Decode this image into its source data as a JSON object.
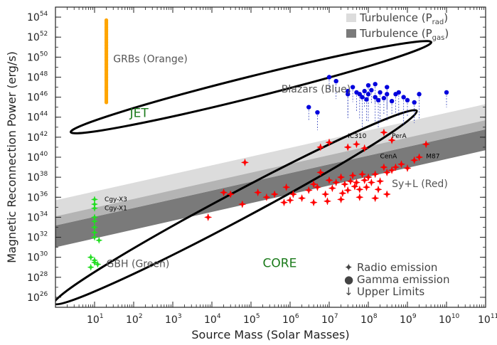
{
  "chart_data": {
    "type": "scatter",
    "xlabel": "Source Mass (Solar Masses)",
    "ylabel": "Magnetic Reconnection Power (erg/s)",
    "x_scale": "log",
    "y_scale": "log",
    "xlim": [
      1,
      100000000000
    ],
    "ylim": [
      1e+25,
      1e+55
    ],
    "x_ticks": [
      {
        "base": "10",
        "exp": "1",
        "value": 10
      },
      {
        "base": "10",
        "exp": "2",
        "value": 100
      },
      {
        "base": "10",
        "exp": "3",
        "value": 1000
      },
      {
        "base": "10",
        "exp": "4",
        "value": 10000
      },
      {
        "base": "10",
        "exp": "5",
        "value": 100000
      },
      {
        "base": "10",
        "exp": "6",
        "value": 1000000
      },
      {
        "base": "10",
        "exp": "7",
        "value": 10000000
      },
      {
        "base": "10",
        "exp": "8",
        "value": 100000000
      },
      {
        "base": "10",
        "exp": "9",
        "value": 1000000000
      },
      {
        "base": "10",
        "exp": "10",
        "value": 10000000000
      },
      {
        "base": "10",
        "exp": "11",
        "value": 100000000000
      }
    ],
    "y_ticks": [
      {
        "base": "10",
        "exp": "26",
        "value": 1e+26
      },
      {
        "base": "10",
        "exp": "28",
        "value": 1e+28
      },
      {
        "base": "10",
        "exp": "30",
        "value": 1e+30
      },
      {
        "base": "10",
        "exp": "32",
        "value": 1e+32
      },
      {
        "base": "10",
        "exp": "34",
        "value": 1e+34
      },
      {
        "base": "10",
        "exp": "36",
        "value": 1e+36
      },
      {
        "base": "10",
        "exp": "38",
        "value": 1e+38
      },
      {
        "base": "10",
        "exp": "40",
        "value": 1e+40
      },
      {
        "base": "10",
        "exp": "42",
        "value": 1e+42
      },
      {
        "base": "10",
        "exp": "44",
        "value": 1e+44
      },
      {
        "base": "10",
        "exp": "46",
        "value": 1e+46
      },
      {
        "base": "10",
        "exp": "48",
        "value": 1e+48
      },
      {
        "base": "10",
        "exp": "50",
        "value": 1e+50
      },
      {
        "base": "10",
        "exp": "52",
        "value": 1e+52
      },
      {
        "base": "10",
        "exp": "54",
        "value": 1e+54
      }
    ],
    "bands": [
      {
        "label": "Turbulence (P",
        "subscript": "rad",
        "suffix": ")",
        "color": "#dcdcdc",
        "lower": [
          [
            1,
            1.5e+33
          ],
          [
            100000000000,
            6e+42
          ]
        ],
        "upper": [
          [
            1,
            5e+35
          ],
          [
            100000000000,
            2e+45
          ]
        ]
      },
      {
        "label": "Turbulence (P",
        "subscript": "gas",
        "suffix": ")",
        "color": "#7a7a7a",
        "lower": [
          [
            1,
            1e+31
          ],
          [
            100000000000,
            5e+40
          ]
        ],
        "upper": [
          [
            1,
            1.5e+33
          ],
          [
            100000000000,
            6e+42
          ]
        ]
      }
    ],
    "ellipses": [
      {
        "name": "jet",
        "center": [
          100000.0,
          1e+47
        ],
        "width_decades": 9.5,
        "height_decades": 9.6,
        "angle_deg": 14
      },
      {
        "name": "core",
        "center": [
          40000.0,
          1e+35
        ],
        "width_decades": 10.5,
        "height_decades": 12.4,
        "angle_deg": 28
      }
    ],
    "series": [
      {
        "name": "GRBs (Orange)",
        "color": "#ffa500",
        "points": [
          [
            20,
            5e+53
          ],
          [
            20,
            3e+53
          ],
          [
            20,
            2e+53
          ],
          [
            20,
            1e+53
          ],
          [
            20,
            6e+52
          ],
          [
            20,
            4e+52
          ],
          [
            20,
            2e+52
          ],
          [
            20,
            1e+52
          ],
          [
            20,
            6e+51
          ],
          [
            20,
            3e+51
          ],
          [
            20,
            1.5e+51
          ],
          [
            20,
            8e+50
          ],
          [
            20,
            4e+50
          ],
          [
            20,
            2e+50
          ],
          [
            20,
            1e+50
          ],
          [
            20,
            5e+49
          ],
          [
            20,
            2e+49
          ],
          [
            20,
            1e+49
          ],
          [
            20,
            5e+48
          ],
          [
            20,
            2e+48
          ],
          [
            20,
            1e+48
          ],
          [
            20,
            5e+47
          ],
          [
            20,
            1e+47
          ],
          [
            20,
            5e+46
          ],
          [
            20,
            3e+45
          ]
        ]
      },
      {
        "name": "Blazars (Blue)",
        "color": "#0000dd",
        "points": [
          [
            10000000.0,
            1e+48
          ],
          [
            15000000.0,
            4e+47
          ],
          [
            30000000.0,
            2e+46
          ],
          [
            30000000.0,
            4e+46
          ],
          [
            40000000.0,
            1e+47
          ],
          [
            50000000.0,
            3e+46
          ],
          [
            60000000.0,
            2e+46
          ],
          [
            70000000.0,
            1e+46
          ],
          [
            80000000.0,
            4e+46
          ],
          [
            100000000.0,
            1.5e+47
          ],
          [
            100000000.0,
            2e+46
          ],
          [
            120000000.0,
            5e+46
          ],
          [
            150000000.0,
            2e+47
          ],
          [
            150000000.0,
            1e+46
          ],
          [
            200000000.0,
            3e+46
          ],
          [
            250000000.0,
            8e+45
          ],
          [
            300000000.0,
            1e+47
          ],
          [
            300000000.0,
            2e+46
          ],
          [
            400000000.0,
            4e+45
          ],
          [
            500000000.0,
            2e+46
          ],
          [
            600000000.0,
            3e+46
          ],
          [
            800000000.0,
            1e+46
          ],
          [
            1000000000.0,
            5e+45
          ],
          [
            1500000000.0,
            3e+45
          ],
          [
            2000000000.0,
            2e+46
          ],
          [
            3000000.0,
            1e+45
          ],
          [
            5000000.0,
            3e+44
          ],
          [
            90000000.0,
            6e+45
          ],
          [
            180000000.0,
            5e+45
          ],
          [
            10000000000.0,
            3e+46
          ]
        ]
      },
      {
        "name": "Sy+L (Red)",
        "color": "#ff0000",
        "points": [
          [
            8000.0,
            1e+34
          ],
          [
            20000.0,
            3e+36
          ],
          [
            30000.0,
            2e+36
          ],
          [
            60000.0,
            2e+35
          ],
          [
            70000.0,
            3e+39
          ],
          [
            150000.0,
            3e+36
          ],
          [
            250000.0,
            1e+36
          ],
          [
            400000.0,
            2e+36
          ],
          [
            700000.0,
            3e+35
          ],
          [
            1000000.0,
            5e+35
          ],
          [
            2000000.0,
            8e+35
          ],
          [
            3000000.0,
            5e+36
          ],
          [
            4000000.0,
            2e+37
          ],
          [
            5000000.0,
            1e+37
          ],
          [
            6000000.0,
            3e+38
          ],
          [
            8000000.0,
            2e+36
          ],
          [
            10000000.0,
            5e+37
          ],
          [
            12000000.0,
            8e+36
          ],
          [
            15000000.0,
            3e+37
          ],
          [
            20000000.0,
            1e+38
          ],
          [
            25000000.0,
            2e+37
          ],
          [
            30000000.0,
            5e+36
          ],
          [
            35000000.0,
            4e+37
          ],
          [
            40000000.0,
            1.5e+38
          ],
          [
            50000000.0,
            3e+37
          ],
          [
            60000000.0,
            6e+36
          ],
          [
            70000000.0,
            2e+38
          ],
          [
            80000000.0,
            5e+37
          ],
          [
            100000000.0,
            1e+38
          ],
          [
            120000000.0,
            3e+37
          ],
          [
            150000000.0,
            2e+38
          ],
          [
            200000000.0,
            4e+37
          ],
          [
            250000000.0,
            1e+39
          ],
          [
            300000000.0,
            3e+38
          ],
          [
            400000000.0,
            5e+38
          ],
          [
            500000000.0,
            1e+39
          ],
          [
            700000000.0,
            2e+39
          ],
          [
            1000000000.0,
            8e+38
          ],
          [
            1500000000.0,
            5e+39
          ],
          [
            2000000000.0,
            1e+40
          ],
          [
            3000000000.0,
            2e+41
          ],
          [
            6000000.0,
            1e+41
          ],
          [
            10000000.0,
            3e+41
          ],
          [
            30000000.0,
            1e+41
          ],
          [
            50000000.0,
            2e+41
          ],
          [
            80000000.0,
            8e+40
          ],
          [
            250000000.0,
            3e+42
          ],
          [
            400000000.0,
            5e+41
          ],
          [
            4000000.0,
            3e+35
          ],
          [
            20000000.0,
            6e+35
          ],
          [
            60000000.0,
            1e+36
          ],
          [
            150000000.0,
            8e+35
          ],
          [
            300000000.0,
            2e+36
          ],
          [
            800000.0,
            1e+37
          ],
          [
            1200000.0,
            2e+36
          ],
          [
            9000000.0,
            4e+35
          ],
          [
            22000000.0,
            2.5e+36
          ],
          [
            45000000.0,
            1.2e+37
          ],
          [
            90000000.0,
            1e+37
          ],
          [
            180000000.0,
            6e+36
          ]
        ]
      },
      {
        "name": "GBH (Green)",
        "color": "#22dd22",
        "points": [
          [
            10,
            6e+35
          ],
          [
            10,
            2e+35
          ],
          [
            10,
            8e+34
          ],
          [
            10,
            1e+34
          ],
          [
            10,
            4e+33
          ],
          [
            10,
            1e+33
          ],
          [
            10,
            3e+32
          ],
          [
            10,
            1e+32
          ],
          [
            13,
            5e+31
          ],
          [
            8,
            1e+30
          ],
          [
            10,
            5e+29
          ],
          [
            12,
            2e+29
          ],
          [
            8,
            1e+29
          ],
          [
            10,
            3e+29
          ]
        ]
      }
    ],
    "annotations": [
      {
        "text": "GRBs (Orange)",
        "x": 30,
        "y": 3e+49,
        "style": "gray"
      },
      {
        "text": "Blazars (Blue)",
        "x": 600000.0,
        "y": 3e+46,
        "style": "gray"
      },
      {
        "text": "JET",
        "x": 80,
        "y": 1e+44,
        "style": "green"
      },
      {
        "text": "CORE",
        "x": 200000.0,
        "y": 1e+29,
        "style": "green"
      },
      {
        "text": "Sy+L (Red)",
        "x": 400000000.0,
        "y": 1e+37,
        "style": "gray"
      },
      {
        "text": "GBH (Green)",
        "x": 20,
        "y": 1e+29,
        "style": "gray"
      },
      {
        "text": "IC310",
        "x": 30000000.0,
        "y": 8e+41,
        "style": "small"
      },
      {
        "text": "PerA",
        "x": 400000000.0,
        "y": 8e+41,
        "style": "small"
      },
      {
        "text": "M87",
        "x": 3000000000.0,
        "y": 8e+39,
        "style": "small"
      },
      {
        "text": "CenA",
        "x": 200000000.0,
        "y": 8e+39,
        "style": "small"
      },
      {
        "text": "Cgy-X3",
        "x": 18,
        "y": 4e+35,
        "style": "small"
      },
      {
        "text": "Cgy-X1",
        "x": 18,
        "y": 5e+34,
        "style": "small"
      }
    ],
    "legend_items": [
      {
        "symbol": "✦",
        "text": "Radio emission"
      },
      {
        "symbol": "●",
        "text": "Gamma emission"
      },
      {
        "symbol": "↓",
        "text": "Upper Limits"
      }
    ],
    "legend_placement": "bottom-right"
  }
}
